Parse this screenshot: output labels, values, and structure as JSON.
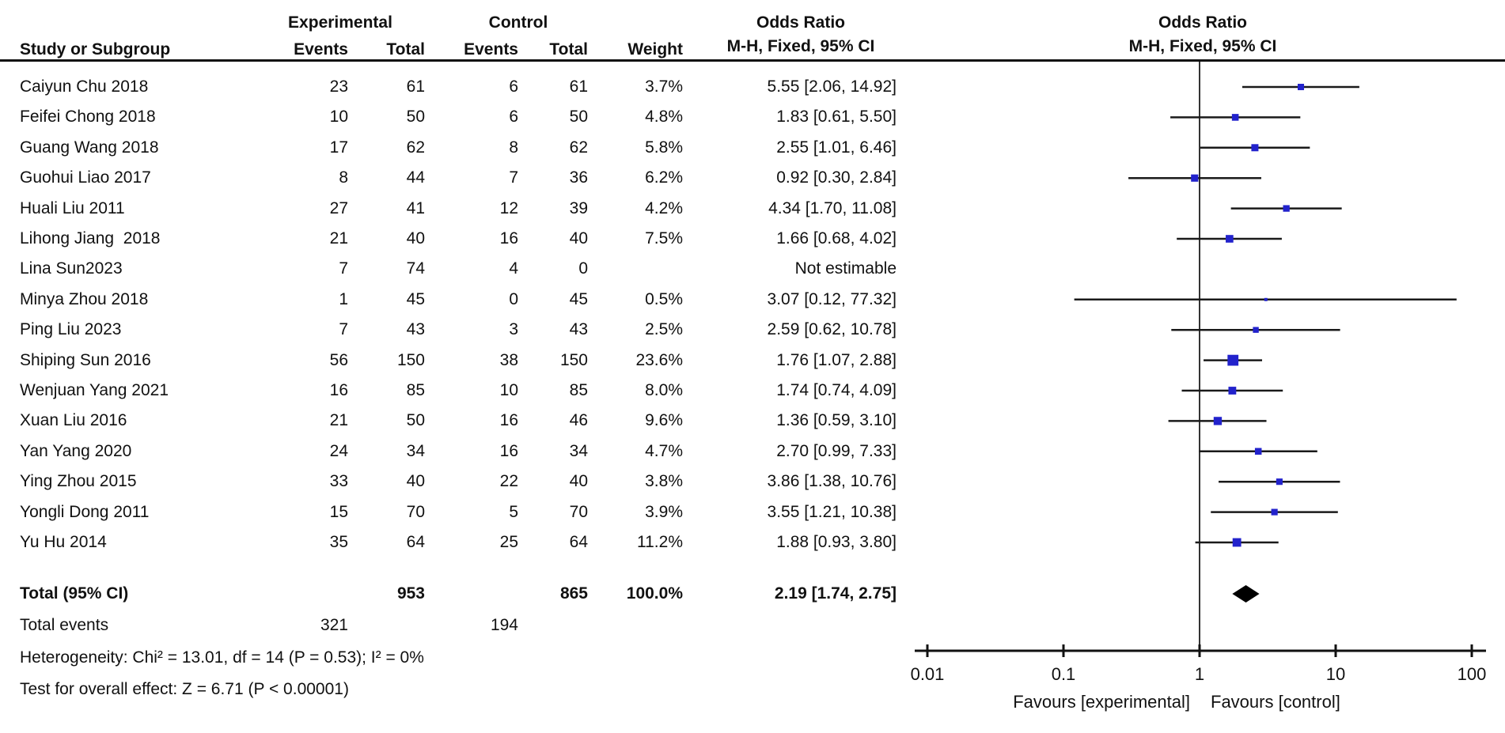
{
  "colors": {
    "marker": "#2222CC",
    "diamond": "#000000",
    "ci_line": "#1a1a1a",
    "axis": "#111111",
    "text": "#111111"
  },
  "table": {
    "group_headers": {
      "experimental": "Experimental",
      "control": "Control",
      "odds_ratio_left": "Odds Ratio",
      "odds_ratio_right": "Odds Ratio"
    },
    "column_headers": {
      "study": "Study or Subgroup",
      "events_exp": "Events",
      "total_exp": "Total",
      "events_ctl": "Events",
      "total_ctl": "Total",
      "weight": "Weight",
      "mh_left": "M-H, Fixed, 95% CI",
      "mh_right": "M-H, Fixed, 95% CI"
    },
    "total_row": {
      "label": "Total (95% CI)",
      "total_exp": "953",
      "total_ctl": "865",
      "weight": "100.0%",
      "ci_text": "2.19 [1.74, 2.75]"
    },
    "total_events": {
      "label": "Total events",
      "events_exp": "321",
      "events_ctl": "194"
    },
    "heterogeneity": "Heterogeneity: Chi² = 13.01, df = 14 (P = 0.53); I² = 0%",
    "overall_effect": "Test for overall effect: Z = 6.71 (P < 0.00001)"
  },
  "chart_data": {
    "type": "forest",
    "effect_measure": "Odds Ratio",
    "method": "M-H, Fixed, 95% CI",
    "x_axis": {
      "scale": "log",
      "tick_values": [
        0.01,
        0.1,
        1,
        10,
        100
      ],
      "tick_labels": [
        "0.01",
        "0.1",
        "1",
        "10",
        "100"
      ],
      "left_label": "Favours [experimental]",
      "right_label": "Favours [control]"
    },
    "studies": [
      {
        "name": "Caiyun Chu 2018",
        "events_exp": "23",
        "total_exp": "61",
        "events_ctl": "6",
        "total_ctl": "61",
        "weight": "3.7%",
        "weight_pct": 3.7,
        "ci_text": "5.55 [2.06, 14.92]",
        "or": 5.55,
        "lo": 2.06,
        "hi": 14.92
      },
      {
        "name": "Feifei Chong 2018",
        "events_exp": "10",
        "total_exp": "50",
        "events_ctl": "6",
        "total_ctl": "50",
        "weight": "4.8%",
        "weight_pct": 4.8,
        "ci_text": "1.83 [0.61, 5.50]",
        "or": 1.83,
        "lo": 0.61,
        "hi": 5.5
      },
      {
        "name": "Guang Wang 2018",
        "events_exp": "17",
        "total_exp": "62",
        "events_ctl": "8",
        "total_ctl": "62",
        "weight": "5.8%",
        "weight_pct": 5.8,
        "ci_text": "2.55 [1.01, 6.46]",
        "or": 2.55,
        "lo": 1.01,
        "hi": 6.46
      },
      {
        "name": "Guohui Liao 2017",
        "events_exp": "8",
        "total_exp": "44",
        "events_ctl": "7",
        "total_ctl": "36",
        "weight": "6.2%",
        "weight_pct": 6.2,
        "ci_text": "0.92 [0.30, 2.84]",
        "or": 0.92,
        "lo": 0.3,
        "hi": 2.84
      },
      {
        "name": "Huali Liu 2011",
        "events_exp": "27",
        "total_exp": "41",
        "events_ctl": "12",
        "total_ctl": "39",
        "weight": "4.2%",
        "weight_pct": 4.2,
        "ci_text": "4.34 [1.70, 11.08]",
        "or": 4.34,
        "lo": 1.7,
        "hi": 11.08
      },
      {
        "name": "Lihong Jiang  2018",
        "events_exp": "21",
        "total_exp": "40",
        "events_ctl": "16",
        "total_ctl": "40",
        "weight": "7.5%",
        "weight_pct": 7.5,
        "ci_text": "1.66 [0.68, 4.02]",
        "or": 1.66,
        "lo": 0.68,
        "hi": 4.02
      },
      {
        "name": "Lina Sun2023",
        "events_exp": "7",
        "total_exp": "74",
        "events_ctl": "4",
        "total_ctl": "0",
        "weight": "",
        "weight_pct": null,
        "ci_text": "Not estimable",
        "or": null,
        "lo": null,
        "hi": null
      },
      {
        "name": "Minya Zhou 2018",
        "events_exp": "1",
        "total_exp": "45",
        "events_ctl": "0",
        "total_ctl": "45",
        "weight": "0.5%",
        "weight_pct": 0.5,
        "ci_text": "3.07 [0.12, 77.32]",
        "or": 3.07,
        "lo": 0.12,
        "hi": 77.32
      },
      {
        "name": "Ping Liu 2023",
        "events_exp": "7",
        "total_exp": "43",
        "events_ctl": "3",
        "total_ctl": "43",
        "weight": "2.5%",
        "weight_pct": 2.5,
        "ci_text": "2.59 [0.62, 10.78]",
        "or": 2.59,
        "lo": 0.62,
        "hi": 10.78
      },
      {
        "name": "Shiping Sun 2016",
        "events_exp": "56",
        "total_exp": "150",
        "events_ctl": "38",
        "total_ctl": "150",
        "weight": "23.6%",
        "weight_pct": 23.6,
        "ci_text": "1.76 [1.07, 2.88]",
        "or": 1.76,
        "lo": 1.07,
        "hi": 2.88
      },
      {
        "name": "Wenjuan Yang 2021",
        "events_exp": "16",
        "total_exp": "85",
        "events_ctl": "10",
        "total_ctl": "85",
        "weight": "8.0%",
        "weight_pct": 8.0,
        "ci_text": "1.74 [0.74, 4.09]",
        "or": 1.74,
        "lo": 0.74,
        "hi": 4.09
      },
      {
        "name": "Xuan Liu 2016",
        "events_exp": "21",
        "total_exp": "50",
        "events_ctl": "16",
        "total_ctl": "46",
        "weight": "9.6%",
        "weight_pct": 9.6,
        "ci_text": "1.36 [0.59, 3.10]",
        "or": 1.36,
        "lo": 0.59,
        "hi": 3.1
      },
      {
        "name": "Yan Yang 2020",
        "events_exp": "24",
        "total_exp": "34",
        "events_ctl": "16",
        "total_ctl": "34",
        "weight": "4.7%",
        "weight_pct": 4.7,
        "ci_text": "2.70 [0.99, 7.33]",
        "or": 2.7,
        "lo": 0.99,
        "hi": 7.33
      },
      {
        "name": "Ying Zhou 2015",
        "events_exp": "33",
        "total_exp": "40",
        "events_ctl": "22",
        "total_ctl": "40",
        "weight": "3.8%",
        "weight_pct": 3.8,
        "ci_text": "3.86 [1.38, 10.76]",
        "or": 3.86,
        "lo": 1.38,
        "hi": 10.76
      },
      {
        "name": "Yongli Dong 2011",
        "events_exp": "15",
        "total_exp": "70",
        "events_ctl": "5",
        "total_ctl": "70",
        "weight": "3.9%",
        "weight_pct": 3.9,
        "ci_text": "3.55 [1.21, 10.38]",
        "or": 3.55,
        "lo": 1.21,
        "hi": 10.38
      },
      {
        "name": "Yu Hu 2014",
        "events_exp": "35",
        "total_exp": "64",
        "events_ctl": "25",
        "total_ctl": "64",
        "weight": "11.2%",
        "weight_pct": 11.2,
        "ci_text": "1.88 [0.93, 3.80]",
        "or": 1.88,
        "lo": 0.93,
        "hi": 3.8
      }
    ],
    "total": {
      "or": 2.19,
      "lo": 1.74,
      "hi": 2.75
    }
  }
}
